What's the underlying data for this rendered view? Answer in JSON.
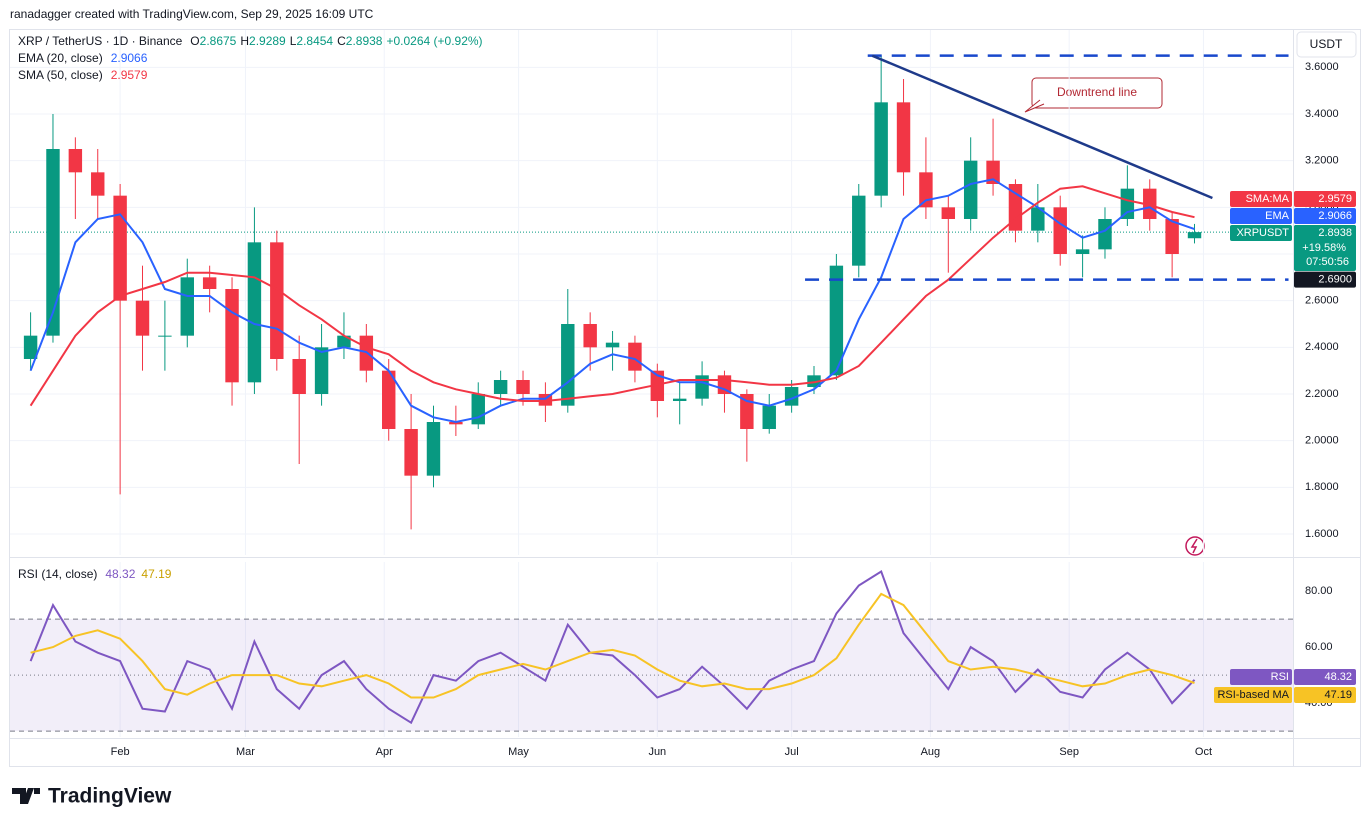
{
  "header": {
    "attribution": "ranadagger created with TradingView.com, Sep 29, 2025 16:09 UTC"
  },
  "footer": {
    "brand": "TradingView"
  },
  "chart_data": [
    {
      "type": "candlestick",
      "title": "XRP / TetherUS · 1D · Binance",
      "ohlc_prefixes": [
        "O",
        "H",
        "L",
        "C"
      ],
      "change": "+0.0264 (+0.92%)",
      "currency": "USDT",
      "x": [
        12,
        17,
        22,
        27,
        32,
        37,
        42,
        47,
        52,
        57,
        62,
        67,
        72,
        77,
        82,
        87,
        92,
        97,
        102,
        107,
        112,
        117,
        122,
        127,
        132,
        137,
        142,
        147,
        152,
        157,
        162,
        167,
        172,
        177,
        182,
        187,
        192,
        197,
        202,
        207,
        212,
        217,
        222,
        227,
        232,
        237,
        242,
        247,
        252,
        257,
        262,
        267,
        272
      ],
      "open": [
        2.35,
        2.45,
        3.25,
        3.15,
        3.05,
        2.6,
        2.45,
        2.45,
        2.7,
        2.65,
        2.25,
        2.85,
        2.35,
        2.2,
        2.4,
        2.45,
        2.3,
        2.05,
        1.85,
        2.08,
        2.07,
        2.2,
        2.26,
        2.2,
        2.15,
        2.5,
        2.4,
        2.42,
        2.3,
        2.17,
        2.18,
        2.28,
        2.2,
        2.05,
        2.15,
        2.23,
        2.28,
        2.75,
        3.05,
        3.45,
        3.15,
        3.0,
        2.95,
        3.2,
        3.1,
        2.9,
        3.0,
        2.8,
        2.82,
        2.95,
        3.08,
        2.95,
        2.8675
      ],
      "high": [
        2.55,
        3.4,
        3.3,
        3.25,
        3.1,
        2.75,
        2.6,
        2.78,
        2.75,
        2.7,
        3.0,
        2.9,
        2.45,
        2.5,
        2.55,
        2.5,
        2.35,
        2.2,
        2.15,
        2.15,
        2.25,
        2.3,
        2.3,
        2.25,
        2.65,
        2.55,
        2.47,
        2.45,
        2.33,
        2.25,
        2.34,
        2.3,
        2.22,
        2.2,
        2.26,
        2.32,
        2.8,
        3.1,
        3.65,
        3.55,
        3.3,
        3.05,
        3.3,
        3.38,
        3.12,
        3.1,
        3.05,
        2.88,
        3.0,
        3.18,
        3.12,
        2.98,
        2.9289
      ],
      "low": [
        2.3,
        2.42,
        2.95,
        2.95,
        1.77,
        2.3,
        2.3,
        2.4,
        2.55,
        2.15,
        2.2,
        2.3,
        1.9,
        2.15,
        2.35,
        2.25,
        2.0,
        1.62,
        1.8,
        2.02,
        2.05,
        2.15,
        2.15,
        2.08,
        2.12,
        2.3,
        2.3,
        2.25,
        2.1,
        2.07,
        2.15,
        2.12,
        1.91,
        2.03,
        2.12,
        2.2,
        2.26,
        2.7,
        3.0,
        3.05,
        2.95,
        2.72,
        2.9,
        3.05,
        2.85,
        2.85,
        2.75,
        2.7,
        2.78,
        2.92,
        2.9,
        2.7,
        2.8454
      ],
      "close": [
        2.45,
        3.25,
        3.15,
        3.05,
        2.6,
        2.45,
        2.45,
        2.7,
        2.65,
        2.25,
        2.85,
        2.35,
        2.2,
        2.4,
        2.45,
        2.3,
        2.05,
        1.85,
        2.08,
        2.07,
        2.2,
        2.26,
        2.2,
        2.15,
        2.5,
        2.4,
        2.42,
        2.3,
        2.17,
        2.18,
        2.28,
        2.2,
        2.05,
        2.15,
        2.23,
        2.28,
        2.75,
        3.05,
        3.45,
        3.15,
        3.0,
        2.95,
        3.2,
        3.1,
        2.9,
        3.0,
        2.8,
        2.82,
        2.95,
        3.08,
        2.95,
        2.8,
        2.8938
      ],
      "up_color": "#089981",
      "down_color": "#f23645",
      "series": [
        {
          "name": "EMA (20, close)",
          "color": "#2962ff",
          "values": [
            2.3,
            2.55,
            2.85,
            2.95,
            2.97,
            2.85,
            2.65,
            2.62,
            2.62,
            2.55,
            2.5,
            2.48,
            2.42,
            2.38,
            2.4,
            2.38,
            2.3,
            2.15,
            2.1,
            2.08,
            2.1,
            2.15,
            2.18,
            2.18,
            2.25,
            2.33,
            2.37,
            2.35,
            2.28,
            2.25,
            2.25,
            2.22,
            2.17,
            2.15,
            2.18,
            2.22,
            2.3,
            2.52,
            2.7,
            2.95,
            3.03,
            3.05,
            3.1,
            3.12,
            3.06,
            3.0,
            2.93,
            2.87,
            2.9,
            2.98,
            3.0,
            2.94,
            2.9066
          ]
        },
        {
          "name": "SMA (50, close)",
          "color": "#f23645",
          "values": [
            2.15,
            2.3,
            2.45,
            2.55,
            2.62,
            2.65,
            2.68,
            2.72,
            2.72,
            2.71,
            2.7,
            2.65,
            2.58,
            2.52,
            2.45,
            2.4,
            2.37,
            2.3,
            2.25,
            2.22,
            2.2,
            2.18,
            2.17,
            2.17,
            2.18,
            2.19,
            2.2,
            2.22,
            2.24,
            2.26,
            2.26,
            2.26,
            2.25,
            2.24,
            2.24,
            2.25,
            2.27,
            2.32,
            2.42,
            2.52,
            2.62,
            2.69,
            2.78,
            2.87,
            2.95,
            3.02,
            3.08,
            3.09,
            3.06,
            3.03,
            3.01,
            2.98,
            2.9579
          ]
        }
      ],
      "xlim": [
        7.4,
        294
      ],
      "ylim": [
        1.51,
        3.76
      ],
      "xticks": [
        {
          "value": 32,
          "label": "Feb"
        },
        {
          "value": 60,
          "label": "Mar"
        },
        {
          "value": 91,
          "label": "Apr"
        },
        {
          "value": 121,
          "label": "May"
        },
        {
          "value": 152,
          "label": "Jun"
        },
        {
          "value": 182,
          "label": "Jul"
        },
        {
          "value": 213,
          "label": "Aug"
        },
        {
          "value": 244,
          "label": "Sep"
        },
        {
          "value": 274,
          "label": "Oct"
        }
      ],
      "yticks": [
        {
          "value": 1.6,
          "label": "1.6000"
        },
        {
          "value": 1.8,
          "label": "1.8000"
        },
        {
          "value": 2.0,
          "label": "2.0000"
        },
        {
          "value": 2.2,
          "label": "2.2000"
        },
        {
          "value": 2.4,
          "label": "2.4000"
        },
        {
          "value": 2.6,
          "label": "2.6000"
        },
        {
          "value": 2.8,
          "label": "2.8000"
        },
        {
          "value": 3.0,
          "label": "3.0000"
        },
        {
          "value": 3.2,
          "label": "3.2000"
        },
        {
          "value": 3.4,
          "label": "3.4000"
        },
        {
          "value": 3.6,
          "label": "3.6000"
        }
      ],
      "grid": true,
      "resistance": {
        "value": 3.65,
        "x": [
          199,
          293
        ]
      },
      "support": {
        "value": {
          "value": 2.69,
          "label": "2.6900"
        },
        "x": [
          185,
          293
        ]
      },
      "trend_line": {
        "x": [
          200,
          276
        ],
        "y": [
          3.65,
          3.04
        ],
        "label": "Downtrend line"
      },
      "axis_tags": {
        "sma": "SMA:MA",
        "ema": "EMA",
        "symbol": "XRPUSDT",
        "change_pct": "+19.58%",
        "countdown": "07:50:56"
      }
    },
    {
      "type": "line",
      "title": "RSI (14, close)",
      "series": [
        {
          "name": "RSI",
          "color": "#7e57c2",
          "values": [
            55,
            75,
            62,
            58,
            55,
            38,
            37,
            55,
            52,
            38,
            62,
            45,
            38,
            50,
            55,
            45,
            38,
            33,
            50,
            48,
            55,
            58,
            53,
            48,
            68,
            58,
            57,
            50,
            42,
            45,
            53,
            46,
            38,
            48,
            52,
            55,
            72,
            82,
            87,
            65,
            55,
            45,
            60,
            55,
            44,
            52,
            44,
            42,
            52,
            58,
            52,
            40,
            48.32
          ]
        },
        {
          "name": "RSI-based MA",
          "color": "#f7c325",
          "values": [
            58,
            60,
            64,
            66,
            63,
            55,
            45,
            43,
            47,
            50,
            50,
            50,
            47,
            46,
            48,
            50,
            47,
            42,
            42,
            45,
            50,
            52,
            54,
            52,
            55,
            58,
            59,
            57,
            52,
            48,
            46,
            47,
            45,
            45,
            47,
            50,
            56,
            68,
            79,
            75,
            65,
            55,
            52,
            53,
            52,
            50,
            48,
            46,
            47,
            50,
            52,
            50,
            47.19
          ]
        }
      ],
      "ylim": [
        27.9,
        90.4
      ],
      "yticks": [
        {
          "value": 80,
          "label": "80.00"
        },
        {
          "value": 60,
          "label": "60.00"
        },
        {
          "value": 40,
          "label": "40.00"
        }
      ],
      "band": [
        30,
        70
      ],
      "midline": 50
    }
  ]
}
